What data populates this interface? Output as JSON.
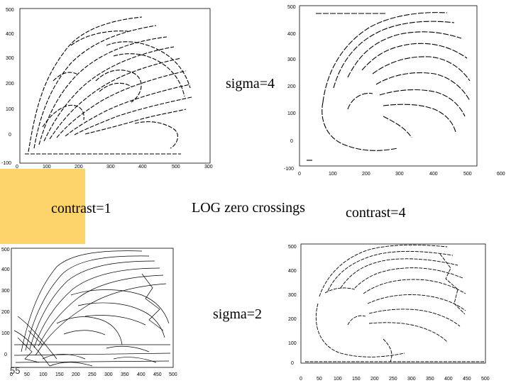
{
  "slide": {
    "number": "55",
    "accent_color": "#fdd36b"
  },
  "labels": {
    "sigma_top": "sigma=4",
    "sigma_bottom": "sigma=2",
    "contrast_left": "contrast=1",
    "contrast_right": "contrast=4",
    "center_title": "LOG zero crossings"
  },
  "plots": [
    {
      "name": "top-left",
      "x_ticks": [
        "0",
        "100",
        "200",
        "300",
        "400",
        "500",
        "300"
      ],
      "y_ticks": [
        "500",
        "400",
        "300",
        "200",
        "100",
        "0",
        "-100"
      ]
    },
    {
      "name": "top-right",
      "x_ticks": [
        "0",
        "100",
        "200",
        "300",
        "400",
        "500",
        "600"
      ],
      "y_ticks": [
        "500",
        "400",
        "300",
        "200",
        "100",
        "0",
        "-100"
      ]
    },
    {
      "name": "bottom-left",
      "x_ticks": [
        "0",
        "50",
        "100",
        "150",
        "200",
        "250",
        "300",
        "350",
        "400",
        "450",
        "500"
      ],
      "y_ticks": [
        "500",
        "400",
        "300",
        "200",
        "100",
        "0"
      ]
    },
    {
      "name": "bottom-right",
      "x_ticks": [
        "0",
        "50",
        "100",
        "150",
        "200",
        "250",
        "300",
        "350",
        "400",
        "450",
        "500"
      ],
      "y_ticks": [
        "500",
        "400",
        "300",
        "200",
        "100",
        "0"
      ]
    }
  ]
}
